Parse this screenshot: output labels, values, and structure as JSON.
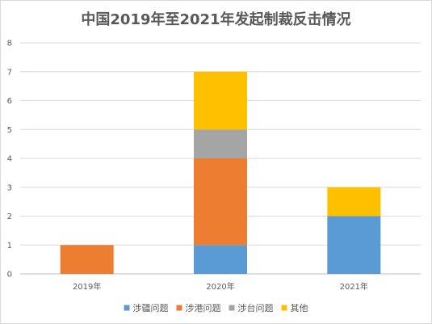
{
  "chart_data": {
    "type": "bar",
    "stacked": true,
    "title": "中国2019年至2021年发起制裁反击情况",
    "categories": [
      "2019年",
      "2020年",
      "2021年"
    ],
    "series": [
      {
        "name": "涉疆问题",
        "color": "#5b9bd5",
        "values": [
          0,
          1,
          2
        ]
      },
      {
        "name": "涉港问题",
        "color": "#ed7d31",
        "values": [
          1,
          3,
          0
        ]
      },
      {
        "name": "涉台问题",
        "color": "#a5a5a5",
        "values": [
          0,
          1,
          0
        ]
      },
      {
        "name": "其他",
        "color": "#ffc000",
        "values": [
          0,
          2,
          1
        ]
      }
    ],
    "ylim": [
      0,
      8
    ],
    "yticks": [
      0,
      1,
      2,
      3,
      4,
      5,
      6,
      7,
      8
    ],
    "grid": true,
    "legend_position": "bottom"
  }
}
